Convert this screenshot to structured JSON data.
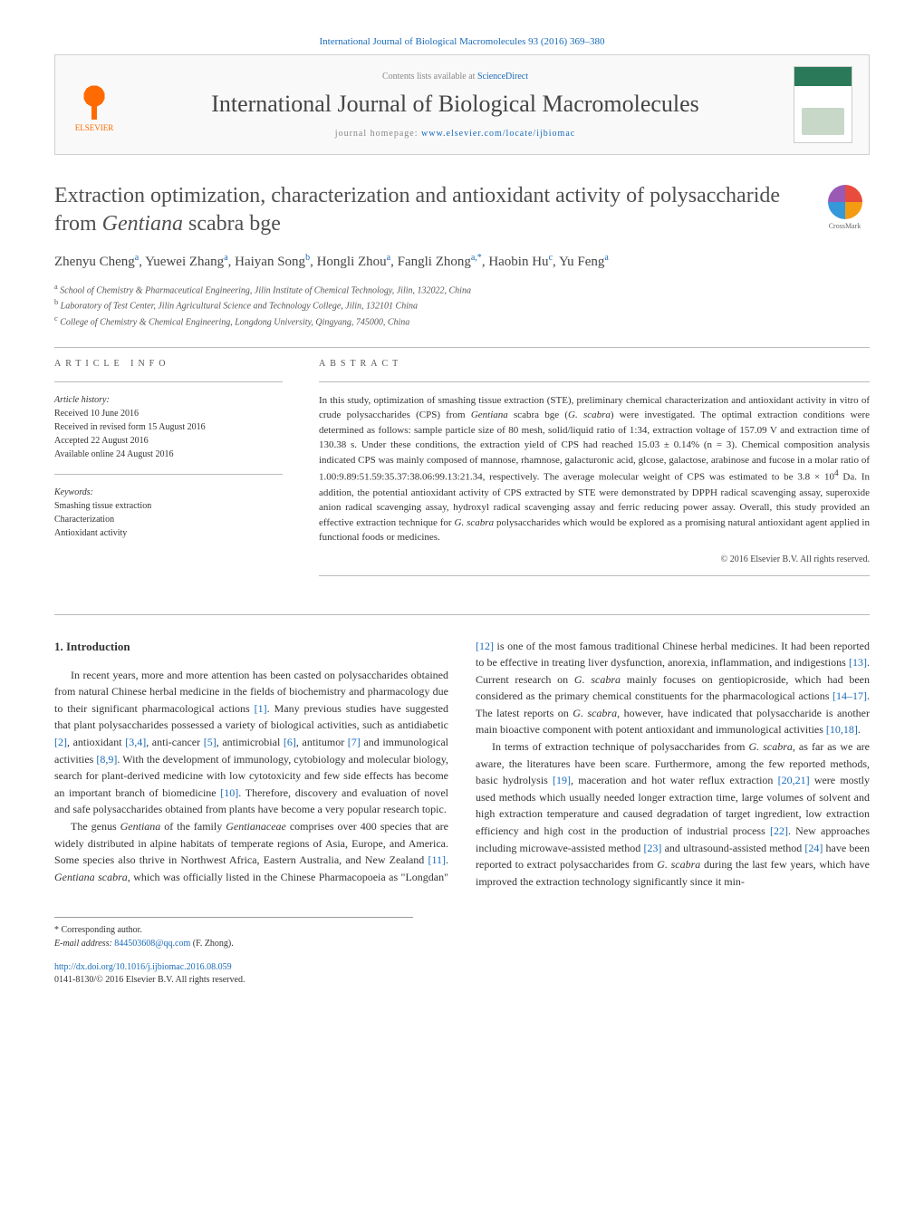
{
  "colors": {
    "link": "#1a6bb8",
    "text": "#333333",
    "heading": "#505050",
    "muted": "#888888",
    "elsevier_orange": "#ff6b00",
    "border": "#d0d0d0"
  },
  "top_citation": {
    "journal_link_text": "International Journal of Biological Macromolecules 93 (2016) 369–380"
  },
  "header": {
    "publisher": "ELSEVIER",
    "contents_prefix": "Contents lists available at ",
    "contents_link": "ScienceDirect",
    "journal_name": "International Journal of Biological Macromolecules",
    "homepage_prefix": "journal homepage: ",
    "homepage_url": "www.elsevier.com/locate/ijbiomac"
  },
  "crossmark": {
    "label": "CrossMark"
  },
  "title": "Extraction optimization, characterization and antioxidant activity of polysaccharide from <em>Gentiana</em> scabra bge",
  "authors_html": "Zhenyu Cheng<sup>a</sup>, Yuewei Zhang<sup>a</sup>, Haiyan Song<sup>b</sup>, Hongli Zhou<sup>a</sup>, Fangli Zhong<sup>a,*</sup>, Haobin Hu<sup>c</sup>, Yu Feng<sup>a</sup>",
  "affiliations": {
    "a": "School of Chemistry & Pharmaceutical Engineering, Jilin Institute of Chemical Technology, Jilin, 132022, China",
    "b": "Laboratory of Test Center, Jilin Agricultural Science and Technology College, Jilin, 132101 China",
    "c": "College of Chemistry & Chemical Engineering, Longdong University, Qingyang, 745000, China"
  },
  "article_info": {
    "heading": "ARTICLE INFO",
    "history_label": "Article history:",
    "received": "Received 10 June 2016",
    "revised": "Received in revised form 15 August 2016",
    "accepted": "Accepted 22 August 2016",
    "online": "Available online 24 August 2016",
    "keywords_label": "Keywords:",
    "keywords": [
      "Smashing tissue extraction",
      "Characterization",
      "Antioxidant activity"
    ]
  },
  "abstract": {
    "heading": "ABSTRACT",
    "text": "In this study, optimization of smashing tissue extraction (STE), preliminary chemical characterization and antioxidant activity in vitro of crude polysaccharides (CPS) from <em>Gentiana</em> scabra bge (<em>G. scabra</em>) were investigated. The optimal extraction conditions were determined as follows: sample particle size of 80 mesh, solid/liquid ratio of 1:34, extraction voltage of 157.09 V and extraction time of 130.38 s. Under these conditions, the extraction yield of CPS had reached 15.03 ± 0.14% (n = 3). Chemical composition analysis indicated CPS was mainly composed of mannose, rhamnose, galacturonic acid, glcose, galactose, arabinose and fucose in a molar ratio of 1.00:9.89:51.59:35.37:38.06:99.13:21.34, respectively. The average molecular weight of CPS was estimated to be 3.8 × 10<sup>4</sup> Da. In addition, the potential antioxidant activity of CPS extracted by STE were demonstrated by DPPH radical scavenging assay, superoxide anion radical scavenging assay, hydroxyl radical scavenging assay and ferric reducing power assay. Overall, this study provided an effective extraction technique for <em>G. scabra</em> polysaccharides which would be explored as a promising natural antioxidant agent applied in functional foods or medicines.",
    "copyright": "© 2016 Elsevier B.V. All rights reserved."
  },
  "body": {
    "section_number": "1.",
    "section_title": "Introduction",
    "para1": "In recent years, more and more attention has been casted on polysaccharides obtained from natural Chinese herbal medicine in the fields of biochemistry and pharmacology due to their significant pharmacological actions <a>[1]</a>. Many previous studies have suggested that plant polysaccharides possessed a variety of biological activities, such as antidiabetic <a>[2]</a>, antioxidant <a>[3,4]</a>, anti-cancer <a>[5]</a>, antimicrobial <a>[6]</a>, antitumor <a>[7]</a> and immunological activities <a>[8,9]</a>. With the development of immunology, cytobiology and molecular biology, search for plant-derived medicine with low cytotoxicity and few side effects has become an important branch of biomedicine <a>[10]</a>. Therefore, discovery and evaluation of novel and safe polysaccharides obtained from plants have become a very popular research topic.",
    "para2": "The genus <em>Gentiana</em> of the family <em>Gentianaceae</em> comprises over 400 species that are widely distributed in alpine habitats of temperate regions of Asia, Europe, and America. Some species also thrive in Northwest Africa, Eastern Australia, and New Zealand <a>[11]</a>. <em>Gentiana scabra</em>, which was officially listed in the Chinese Pharmacopoeia as \"Longdan\" <a>[12]</a> is one of the most famous traditional Chinese herbal medicines. It had been reported to be effective in treating liver dysfunction, anorexia, inflammation, and indigestions <a>[13]</a>. Current research on <em>G. scabra</em> mainly focuses on gentiopicroside, which had been considered as the primary chemical constituents for the pharmacological actions <a>[14–17]</a>. The latest reports on <em>G. scabra</em>, however, have indicated that polysaccharide is another main bioactive component with potent antioxidant and immunological activities <a>[10,18]</a>.",
    "para3": "In terms of extraction technique of polysaccharides from <em>G. scabra</em>, as far as we are aware, the literatures have been scare. Furthermore, among the few reported methods, basic hydrolysis <a>[19]</a>, maceration and hot water reflux extraction <a>[20,21]</a> were mostly used methods which usually needed longer extraction time, large volumes of solvent and high extraction temperature and caused degradation of target ingredient, low extraction efficiency and high cost in the production of industrial process <a>[22]</a>. New approaches including microwave-assisted method <a>[23]</a> and ultrasound-assisted method <a>[24]</a> have been reported to extract polysaccharides from <em>G. scabra</em> during the last few years, which have improved the extraction technology significantly since it min-"
  },
  "footer": {
    "corresponding_label": "* Corresponding author.",
    "email_label": "E-mail address:",
    "email": "844503608@qq.com",
    "email_person": "(F. Zhong).",
    "doi_url": "http://dx.doi.org/10.1016/j.ijbiomac.2016.08.059",
    "issn_line": "0141-8130/© 2016 Elsevier B.V. All rights reserved."
  }
}
